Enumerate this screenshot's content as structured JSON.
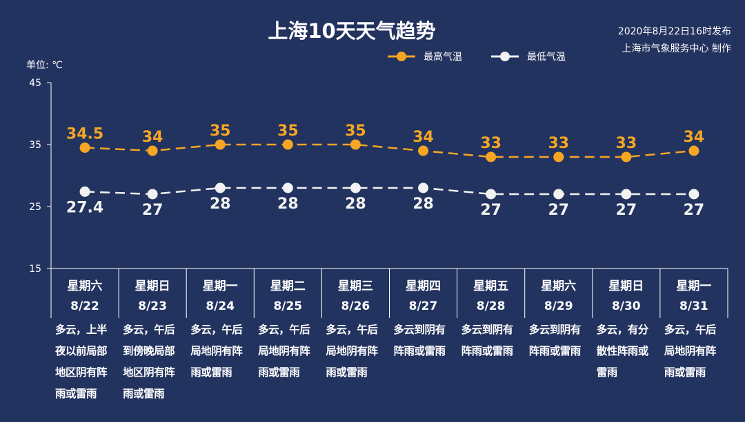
{
  "title": "上海10天天气趋势",
  "issue_line1": "2020年8月22日16时发布",
  "issue_line2": "上海市气象服务中心 制作",
  "unit_label": "单位: ℃",
  "colors": {
    "background": "#23335f",
    "high": "#f5a623",
    "low": "#f2f2f2"
  },
  "chart_data": {
    "type": "line",
    "title": "上海10天天气趋势",
    "ylabel": "单位: ℃",
    "ylim": [
      15,
      45
    ],
    "yticks": [
      15,
      25,
      35,
      45
    ],
    "legend_position": "top-right",
    "grid": false,
    "categories": [
      "8/22",
      "8/23",
      "8/24",
      "8/25",
      "8/26",
      "8/27",
      "8/28",
      "8/29",
      "8/30",
      "8/31"
    ],
    "weekdays": [
      "星期六",
      "星期日",
      "星期一",
      "星期二",
      "星期三",
      "星期四",
      "星期五",
      "星期六",
      "星期日",
      "星期一"
    ],
    "series": [
      {
        "name": "最高气温",
        "values": [
          34.5,
          34,
          35,
          35,
          35,
          34,
          33,
          33,
          33,
          34
        ]
      },
      {
        "name": "最低气温",
        "values": [
          27.4,
          27,
          28,
          28,
          28,
          28,
          27,
          27,
          27,
          27
        ]
      }
    ],
    "descriptions": [
      [
        "多云，上半",
        "夜以前局部",
        "地区阴有阵",
        "雨或雷雨"
      ],
      [
        "多云，午后",
        "到傍晚局部",
        "地区阴有阵",
        "雨或雷雨"
      ],
      [
        "多云，午后",
        "局地阴有阵",
        "雨或雷雨"
      ],
      [
        "多云，午后",
        "局地阴有阵",
        "雨或雷雨"
      ],
      [
        "多云，午后",
        "局地阴有阵",
        "雨或雷雨"
      ],
      [
        "多云到阴有",
        "阵雨或雷雨"
      ],
      [
        "多云到阴有",
        "阵雨或雷雨"
      ],
      [
        "多云到阴有",
        "阵雨或雷雨"
      ],
      [
        "多云，有分",
        "散性阵雨或",
        "雷雨"
      ],
      [
        "多云，午后",
        "局地阴有阵",
        "雨或雷雨"
      ]
    ]
  }
}
